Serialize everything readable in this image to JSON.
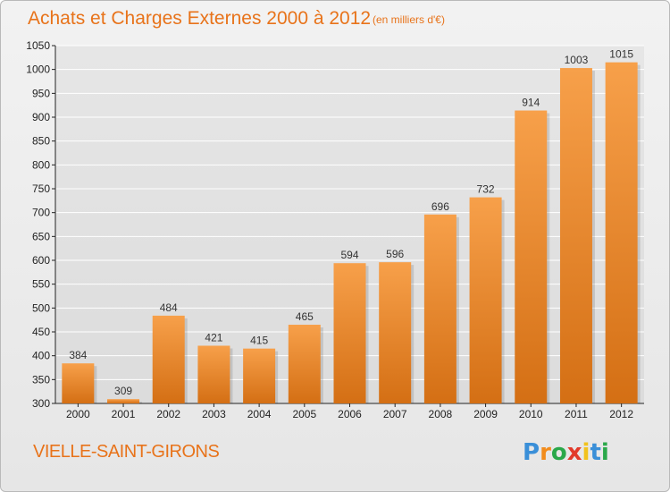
{
  "header": {
    "title": "Achats et Charges Externes 2000 à 2012",
    "unit": "(en milliers d'€)"
  },
  "footer": {
    "place": "VIELLE-SAINT-GIRONS",
    "brand": [
      "P",
      "r",
      "o",
      "x",
      "i",
      "t",
      "i"
    ],
    "brand_colors": [
      "#3a8fd8",
      "#f28c1c",
      "#2aa84a",
      "#e23a2a",
      "#f2c21c",
      "#3a8fd8",
      "#2aa84a"
    ]
  },
  "colors": {
    "bar_light": "#f7a04a",
    "bar_dark": "#d46f14",
    "axis": "#222222",
    "grid": "#ffffff",
    "accent": "#e8731a"
  },
  "chart_data": {
    "type": "bar",
    "categories": [
      "2000",
      "2001",
      "2002",
      "2003",
      "2004",
      "2005",
      "2006",
      "2007",
      "2008",
      "2009",
      "2010",
      "2011",
      "2012"
    ],
    "values": [
      384,
      309,
      484,
      421,
      415,
      465,
      594,
      596,
      696,
      732,
      914,
      1003,
      1015
    ],
    "ylim": [
      300,
      1050
    ],
    "yticks": [
      300,
      350,
      400,
      450,
      500,
      550,
      600,
      650,
      700,
      750,
      800,
      850,
      900,
      950,
      1000,
      1050
    ],
    "grid": true,
    "legend": "none"
  }
}
